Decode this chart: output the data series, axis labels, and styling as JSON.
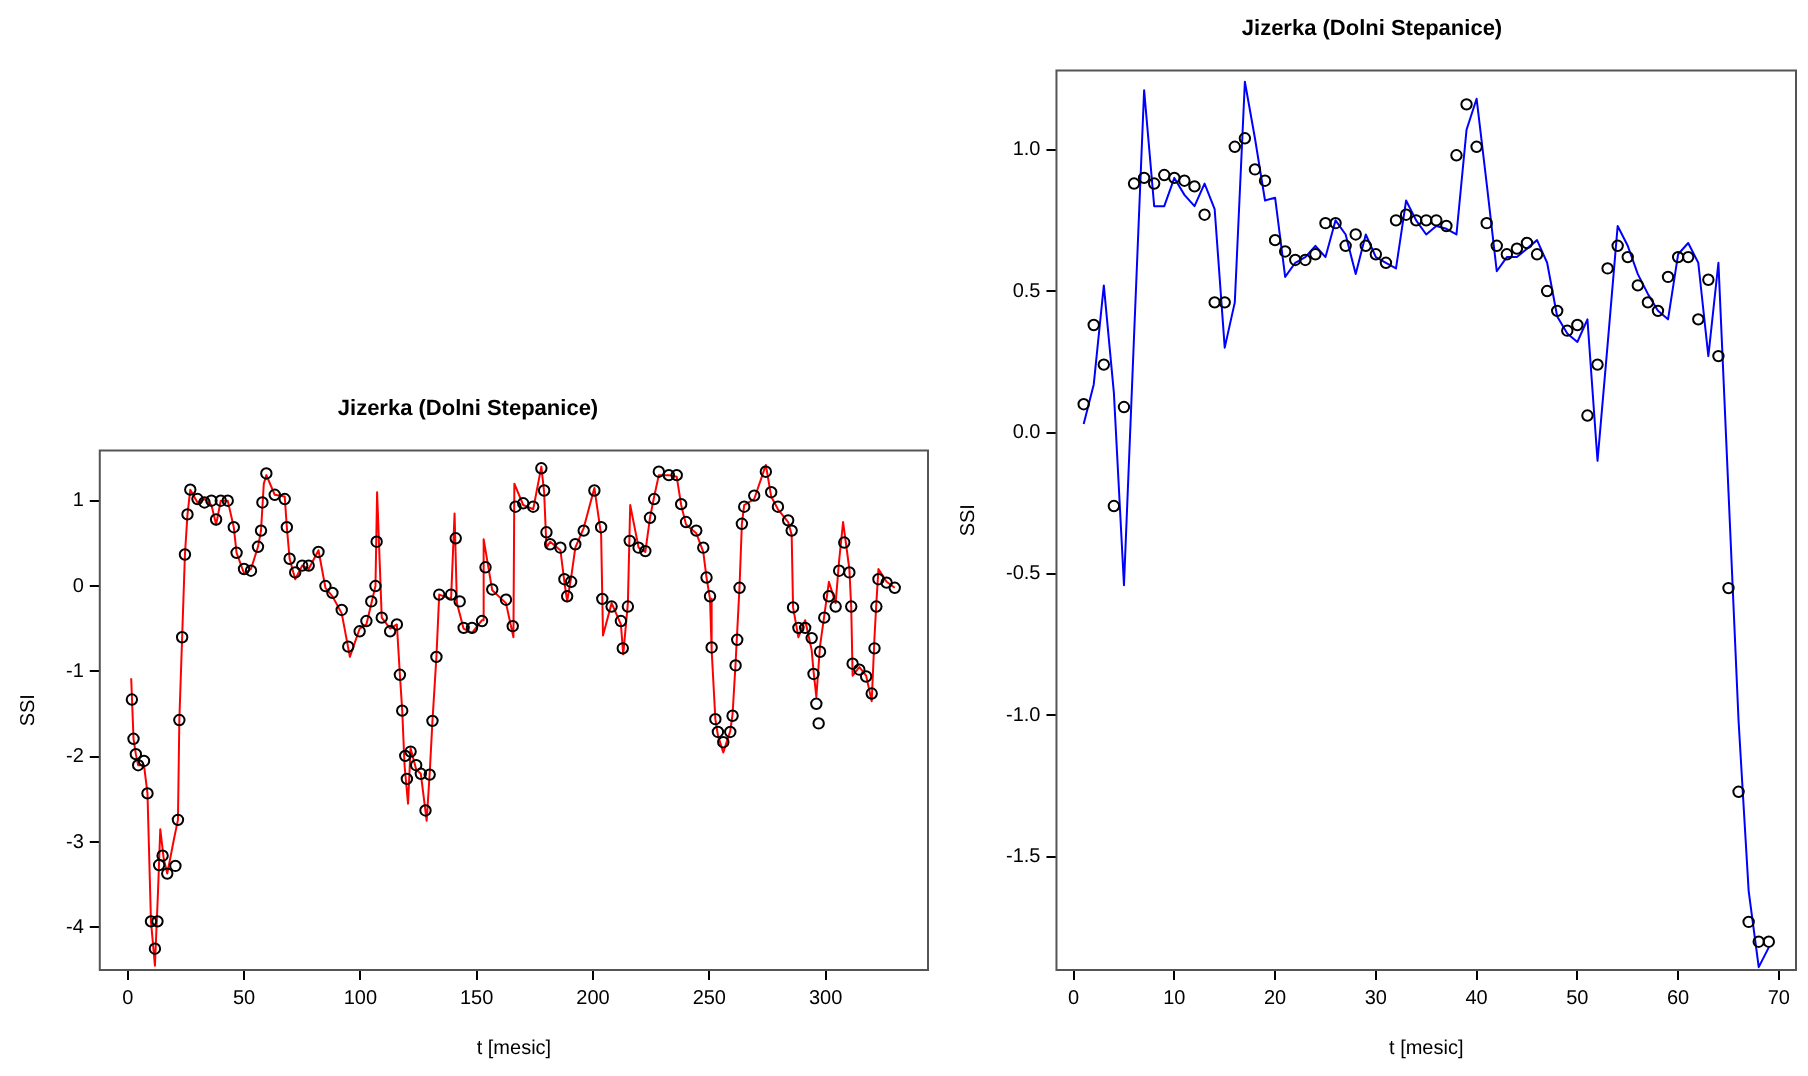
{
  "chart_data": [
    {
      "type": "line",
      "title": "Jizerka (Dolni Stepanice)",
      "xlabel": "t [mesic]",
      "ylabel": "SSI",
      "xlim": [
        -12,
        344
      ],
      "ylim": [
        -4.5,
        1.59
      ],
      "xticks": [
        0,
        50,
        100,
        150,
        200,
        250,
        300
      ],
      "yticks": [
        -4,
        -3,
        -2,
        -1,
        0,
        1
      ],
      "grid": false,
      "legend": false,
      "series": [
        {
          "type": "line",
          "color": "#ff0000",
          "line_style": "solid",
          "x": [
            1.5,
            2.5,
            3.5,
            4.5,
            7,
            8.5,
            10,
            11.7,
            13,
            14,
            15.5,
            17,
            20,
            21.6,
            22.2,
            23.4,
            24.6,
            25.7,
            26.9,
            30,
            33,
            36,
            38,
            40,
            43,
            45.6,
            46.8,
            50,
            53,
            56,
            57.3,
            58.5,
            59.6,
            63.2,
            67.5,
            68.4,
            69.6,
            72,
            75,
            77.8,
            82,
            85,
            88,
            92,
            95.5,
            99.7,
            102.6,
            106.5,
            107.2,
            109.2,
            112.8,
            115.7,
            117,
            118,
            119,
            120.5,
            121.6,
            124,
            126,
            128.5,
            129.8,
            131,
            132.7,
            133.9,
            139,
            140.5,
            141.5,
            144.4,
            148,
            152.3,
            153,
            156.7,
            162.6,
            165.8,
            166.2,
            170,
            174.3,
            177.8,
            179,
            180,
            181.6,
            186,
            187.7,
            188.9,
            190.6,
            192.4,
            196,
            200.6,
            203.5,
            204.3,
            208,
            212,
            213,
            215,
            216,
            219.6,
            222.5,
            224.5,
            226.3,
            228.3,
            232.6,
            236,
            237.9,
            240,
            244.4,
            247.4,
            248.8,
            250.3,
            251,
            252.6,
            253.7,
            256,
            259,
            260,
            261.3,
            263,
            264,
            265,
            269.3,
            274.3,
            276.6,
            279.5,
            283.9,
            285.4,
            286,
            288.3,
            291.2,
            294,
            294.8,
            296,
            297.6,
            299.4,
            301.4,
            304.3,
            305.8,
            307.5,
            310.2,
            311,
            311.6,
            314.5,
            317.4,
            319.8,
            321,
            321.8,
            322.7,
            326.2,
            329.7
          ],
          "values": [
            -1.08,
            -1.79,
            -1.97,
            -2.1,
            -2.1,
            -2.43,
            -3.93,
            -4.45,
            -3.6,
            -2.85,
            -3.2,
            -3.37,
            -2.95,
            -2.74,
            -1.57,
            -0.6,
            0.37,
            0.84,
            1.13,
            0.98,
            1.02,
            0.95,
            0.72,
            1.0,
            1.0,
            0.69,
            0.39,
            0.15,
            0.2,
            0.46,
            0.65,
            1.2,
            1.3,
            1.07,
            1.05,
            0.69,
            0.32,
            0.08,
            0.24,
            0.2,
            0.42,
            -0.02,
            -0.12,
            -0.32,
            -0.83,
            -0.5,
            -0.45,
            0,
            1.1,
            -0.37,
            -0.5,
            -0.45,
            -1.04,
            -1.46,
            -2.1,
            -2.55,
            -1.9,
            -2.15,
            -2.2,
            -2.75,
            -2.2,
            -1.58,
            -0.83,
            -0.1,
            -0.15,
            0.85,
            -0.2,
            -0.5,
            -0.55,
            -0.4,
            0.55,
            -0.05,
            -0.2,
            -0.6,
            1.2,
            0.95,
            0.9,
            1.4,
            1.1,
            0.45,
            0.52,
            0.42,
            0.05,
            -0.18,
            0.1,
            0.45,
            0.68,
            1.15,
            0.6,
            -0.58,
            -0.2,
            -0.45,
            -0.8,
            -0.2,
            0.95,
            0.45,
            0.4,
            0.8,
            1.05,
            1.3,
            1.3,
            1.28,
            0.95,
            0.72,
            0.62,
            0.4,
            0.1,
            -0.15,
            -0.75,
            -1.56,
            -1.75,
            -1.95,
            -1.7,
            -1.5,
            -0.9,
            0,
            0.73,
            0.95,
            1.02,
            1.42,
            1.05,
            0.9,
            0.75,
            0.6,
            -0.25,
            -0.6,
            -0.4,
            -0.75,
            -1.0,
            -1.3,
            -0.7,
            -0.35,
            0.05,
            -0.2,
            0.3,
            0.75,
            0.2,
            -0.25,
            -1.05,
            -0.95,
            -1.05,
            -1.35,
            -0.6,
            -0.2,
            0.2,
            0.05,
            -0.02
          ]
        },
        {
          "type": "scatter",
          "color": "#000000",
          "marker": "circle",
          "x": [
            1.8,
            2.5,
            3.5,
            4.5,
            7,
            8.5,
            10,
            11.7,
            12.8,
            13.5,
            15,
            17,
            20.5,
            21.6,
            22.2,
            23.4,
            24.6,
            25.7,
            26.9,
            30,
            33,
            36,
            38,
            40,
            43,
            45.6,
            46.8,
            50,
            53,
            56,
            57.3,
            57.9,
            59.6,
            63.2,
            67.5,
            68.4,
            69.6,
            72,
            75,
            77.8,
            82,
            85,
            88,
            92,
            94.8,
            99.7,
            102.6,
            104.7,
            106.5,
            107,
            109.2,
            112.8,
            115.7,
            117,
            118,
            119.3,
            120,
            121.6,
            124,
            126,
            128,
            129.8,
            131,
            132.7,
            133.9,
            139,
            141,
            142.7,
            144.4,
            148,
            152.3,
            153.8,
            156.7,
            162.6,
            165.5,
            166.7,
            170,
            174.3,
            177.8,
            179,
            180,
            181.6,
            186,
            187.7,
            188.9,
            190.6,
            192.4,
            196,
            200.6,
            203.5,
            204,
            208,
            212,
            212.8,
            215,
            215.8,
            219.6,
            222.5,
            224.5,
            226.3,
            228.3,
            232.6,
            236,
            237.9,
            240,
            244.4,
            247.4,
            248.8,
            250.3,
            251,
            252.6,
            253.7,
            256,
            259,
            260,
            261.3,
            262,
            263,
            264,
            265,
            269.3,
            274.3,
            276.6,
            279.5,
            283.9,
            285.4,
            286,
            288.3,
            291.2,
            294,
            294.8,
            296,
            297,
            297.6,
            299.4,
            301.4,
            304.3,
            305.8,
            308,
            310.2,
            311,
            311.6,
            314.5,
            317.4,
            319.8,
            321,
            321.8,
            322.7,
            326.2,
            329.7
          ],
          "values": [
            -1.33,
            -1.79,
            -1.97,
            -2.1,
            -2.05,
            -2.43,
            -3.93,
            -4.25,
            -3.93,
            -3.27,
            -3.16,
            -3.37,
            -3.28,
            -2.74,
            -1.57,
            -0.6,
            0.37,
            0.84,
            1.13,
            1.02,
            0.98,
            1.0,
            0.78,
            1.0,
            1.0,
            0.69,
            0.39,
            0.2,
            0.18,
            0.46,
            0.65,
            0.98,
            1.32,
            1.07,
            1.02,
            0.69,
            0.32,
            0.16,
            0.24,
            0.24,
            0.4,
            0,
            -0.08,
            -0.28,
            -0.71,
            -0.53,
            -0.41,
            -0.18,
            0,
            0.52,
            -0.37,
            -0.53,
            -0.45,
            -1.04,
            -1.46,
            -1.99,
            -2.26,
            -1.94,
            -2.1,
            -2.2,
            -2.63,
            -2.21,
            -1.58,
            -0.83,
            -0.1,
            -0.1,
            0.56,
            -0.18,
            -0.49,
            -0.49,
            -0.41,
            0.22,
            -0.04,
            -0.16,
            -0.47,
            0.93,
            0.97,
            0.93,
            1.38,
            1.12,
            0.63,
            0.49,
            0.45,
            0.08,
            -0.12,
            0.05,
            0.49,
            0.65,
            1.12,
            0.69,
            -0.15,
            -0.24,
            -0.41,
            -0.73,
            -0.24,
            0.53,
            0.45,
            0.41,
            0.8,
            1.02,
            1.34,
            1.3,
            1.3,
            0.96,
            0.75,
            0.65,
            0.45,
            0.1,
            -0.12,
            -0.72,
            -1.56,
            -1.71,
            -1.83,
            -1.71,
            -1.52,
            -0.93,
            -0.63,
            -0.02,
            0.73,
            0.93,
            1.06,
            1.34,
            1.1,
            0.93,
            0.77,
            0.65,
            -0.25,
            -0.49,
            -0.49,
            -0.61,
            -1.03,
            -1.38,
            -1.61,
            -0.77,
            -0.37,
            -0.12,
            -0.24,
            0.18,
            0.51,
            0.16,
            -0.24,
            -0.91,
            -0.98,
            -1.06,
            -1.26,
            -0.73,
            -0.24,
            0.08,
            0.04,
            -0.02
          ]
        }
      ]
    },
    {
      "type": "line",
      "title": "Jizerka (Dolni Stepanice)",
      "xlabel": "t [mesic]",
      "ylabel": "SSI",
      "xlim": [
        -1.7,
        71.7
      ],
      "ylim": [
        -1.9,
        1.28
      ],
      "xticks": [
        0,
        10,
        20,
        30,
        40,
        50,
        60,
        70
      ],
      "yticks": [
        {
          "value": -1.5,
          "label": "-1.5"
        },
        {
          "value": -1,
          "label": "-1.0"
        },
        {
          "value": -0.5,
          "label": "-0.5"
        },
        {
          "value": 0,
          "label": "0.0"
        },
        {
          "value": 0.5,
          "label": "0.5"
        },
        {
          "value": 1,
          "label": "1.0"
        }
      ],
      "grid": false,
      "legend": false,
      "x": [
        1,
        2,
        3,
        4,
        5,
        6,
        7,
        8,
        9,
        10,
        11,
        12,
        13,
        14,
        15,
        16,
        17,
        18,
        19,
        20,
        21,
        22,
        23,
        24,
        25,
        26,
        27,
        28,
        29,
        30,
        31,
        32,
        33,
        34,
        35,
        36,
        37,
        38,
        39,
        40,
        41,
        42,
        43,
        44,
        45,
        46,
        47,
        48,
        49,
        50,
        51,
        52,
        53,
        54,
        55,
        56,
        57,
        58,
        59,
        60,
        61,
        62,
        63,
        64,
        65,
        66,
        67,
        68,
        69
      ],
      "series": [
        {
          "type": "line",
          "color": "#0000ff",
          "line_style": "solid",
          "values": [
            0.03,
            0.17,
            0.52,
            0.14,
            -0.54,
            0.34,
            1.21,
            0.8,
            0.8,
            0.9,
            0.84,
            0.8,
            0.88,
            0.79,
            0.3,
            0.46,
            1.24,
            1.04,
            0.82,
            0.83,
            0.55,
            0.6,
            0.62,
            0.66,
            0.62,
            0.75,
            0.7,
            0.56,
            0.7,
            0.62,
            0.6,
            0.58,
            0.82,
            0.75,
            0.7,
            0.73,
            0.72,
            0.7,
            1.07,
            1.18,
            0.88,
            0.57,
            0.62,
            0.62,
            0.65,
            0.68,
            0.6,
            0.41,
            0.35,
            0.32,
            0.4,
            -0.1,
            0.31,
            0.73,
            0.66,
            0.56,
            0.49,
            0.43,
            0.4,
            0.63,
            0.67,
            0.6,
            0.27,
            0.6,
            -0.21,
            -1.02,
            -1.62,
            -1.89,
            -1.82
          ]
        },
        {
          "type": "scatter",
          "color": "#000000",
          "marker": "circle",
          "values": [
            0.1,
            0.38,
            0.24,
            -0.26,
            0.09,
            0.88,
            0.9,
            0.88,
            0.91,
            0.9,
            0.89,
            0.87,
            0.77,
            0.46,
            0.46,
            1.01,
            1.04,
            0.93,
            0.89,
            0.68,
            0.64,
            0.61,
            0.61,
            0.63,
            0.74,
            0.74,
            0.66,
            0.7,
            0.66,
            0.63,
            0.6,
            0.75,
            0.77,
            0.75,
            0.75,
            0.75,
            0.73,
            0.98,
            1.16,
            1.01,
            0.74,
            0.66,
            0.63,
            0.65,
            0.67,
            0.63,
            0.5,
            0.43,
            0.36,
            0.38,
            0.06,
            0.24,
            0.58,
            0.66,
            0.62,
            0.52,
            0.46,
            0.43,
            0.55,
            0.62,
            0.62,
            0.4,
            0.54,
            0.27,
            -0.55,
            -1.27,
            -1.73,
            -1.8,
            -1.8
          ]
        }
      ]
    }
  ]
}
